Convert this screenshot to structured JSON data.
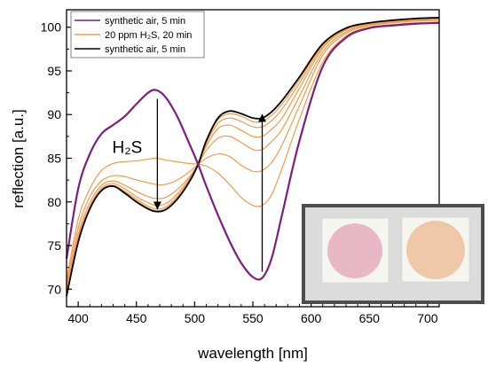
{
  "chart_data": {
    "type": "line",
    "xlabel": "wavelength [nm]",
    "ylabel": "reflection [a.u.]",
    "xlim": [
      390,
      710
    ],
    "ylim": [
      68,
      102
    ],
    "xticks": [
      400,
      450,
      500,
      550,
      600,
      650,
      700
    ],
    "yticks": [
      70,
      75,
      80,
      85,
      90,
      95,
      100
    ],
    "legend_position": "top-left",
    "legend": [
      {
        "label": "synthetic air, 5 min",
        "color": "#7b1f7e"
      },
      {
        "label": "20 ppm H₂S, 20 min",
        "color": "#f29a4a"
      },
      {
        "label": "synthetic air, 5 min",
        "color": "#000000"
      }
    ],
    "annotations": [
      {
        "text": "H₂S",
        "x": 455,
        "y": 85.6
      },
      {
        "type": "arrow",
        "from": [
          468,
          91.8
        ],
        "to": [
          468,
          79.2
        ],
        "direction": "down"
      },
      {
        "type": "arrow",
        "from": [
          558,
          72.0
        ],
        "to": [
          558,
          90.0
        ],
        "direction": "up"
      }
    ],
    "x": [
      390,
      400,
      410,
      420,
      430,
      440,
      450,
      460,
      467,
      475,
      485,
      495,
      503,
      510,
      520,
      530,
      540,
      550,
      558,
      566,
      575,
      590,
      610,
      630,
      650,
      670,
      690,
      710
    ],
    "series": [
      {
        "color": "#7b1f7e",
        "values": [
          73.5,
          81.5,
          85.5,
          87.8,
          88.8,
          89.8,
          91.2,
          92.5,
          92.8,
          92.0,
          89.8,
          86.8,
          84.3,
          81.8,
          78.5,
          75.5,
          73.0,
          71.4,
          71.3,
          73.5,
          78.5,
          87.0,
          95.5,
          98.8,
          99.9,
          100.2,
          100.4,
          100.5
        ]
      },
      {
        "color": "#f29a4a",
        "values": [
          71.0,
          78.0,
          81.5,
          83.6,
          84.4,
          84.6,
          84.7,
          84.9,
          85.0,
          84.8,
          84.6,
          84.4,
          84.3,
          84.1,
          83.3,
          82.0,
          80.5,
          79.6,
          79.6,
          80.8,
          83.8,
          89.5,
          96.0,
          99.0,
          100.0,
          100.3,
          100.5,
          100.6
        ]
      },
      {
        "color": "#f29a4a",
        "values": [
          70.5,
          77.0,
          80.6,
          82.4,
          83.0,
          82.9,
          82.5,
          82.2,
          82.0,
          82.0,
          82.5,
          83.4,
          84.3,
          85.0,
          85.5,
          85.2,
          84.2,
          83.5,
          83.6,
          84.5,
          86.5,
          91.0,
          96.8,
          99.3,
          100.2,
          100.5,
          100.7,
          100.8
        ]
      },
      {
        "color": "#f29a4a",
        "values": [
          70.0,
          76.3,
          79.9,
          81.9,
          82.4,
          81.9,
          81.2,
          80.6,
          80.4,
          80.5,
          81.4,
          82.8,
          84.3,
          85.9,
          87.3,
          87.5,
          86.8,
          86.0,
          86.0,
          86.9,
          88.3,
          92.1,
          97.2,
          99.5,
          100.3,
          100.6,
          100.8,
          100.9
        ]
      },
      {
        "color": "#f29a4a",
        "values": [
          69.6,
          75.9,
          79.5,
          81.6,
          82.1,
          81.5,
          80.6,
          79.9,
          79.6,
          79.8,
          80.9,
          82.6,
          84.3,
          86.4,
          88.4,
          88.8,
          88.2,
          87.5,
          87.5,
          88.3,
          89.6,
          93.0,
          97.6,
          99.7,
          100.4,
          100.7,
          100.9,
          101.0
        ]
      },
      {
        "color": "#f29a4a",
        "values": [
          69.4,
          75.6,
          79.3,
          81.4,
          81.9,
          81.2,
          80.3,
          79.5,
          79.2,
          79.4,
          80.6,
          82.4,
          84.3,
          86.7,
          89.0,
          89.6,
          89.2,
          88.6,
          88.6,
          89.3,
          90.6,
          93.6,
          97.8,
          99.8,
          100.5,
          100.8,
          101.0,
          101.1
        ]
      },
      {
        "color": "#f29a4a",
        "values": [
          69.3,
          75.5,
          79.2,
          81.3,
          81.8,
          81.1,
          80.1,
          79.3,
          79.0,
          79.2,
          80.4,
          82.3,
          84.3,
          86.9,
          89.4,
          90.1,
          89.8,
          89.2,
          89.2,
          89.9,
          91.2,
          94.0,
          98.0,
          99.9,
          100.5,
          100.8,
          101.0,
          101.1
        ]
      },
      {
        "color": "#000000",
        "values": [
          69.2,
          75.4,
          79.2,
          81.3,
          81.8,
          81.0,
          80.0,
          79.2,
          78.9,
          79.1,
          80.3,
          82.2,
          84.3,
          87.0,
          89.6,
          90.4,
          90.1,
          89.6,
          89.6,
          90.3,
          91.6,
          94.3,
          98.1,
          99.9,
          100.5,
          100.8,
          101.0,
          101.1
        ]
      }
    ]
  },
  "inset": {
    "spots": [
      {
        "color": "#e8b8c6"
      },
      {
        "color": "#efc8aa"
      }
    ]
  }
}
